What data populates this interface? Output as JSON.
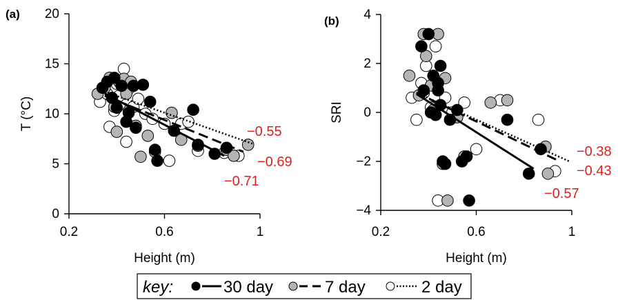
{
  "chart_data": [
    {
      "type": "scatter",
      "panel_label": "(a)",
      "xlabel": "Height (m)",
      "ylabel": "T (°C)",
      "xlim": [
        0.2,
        1.0
      ],
      "ylim": [
        0,
        20
      ],
      "xticks": [
        "0.2",
        "0.6",
        "1"
      ],
      "yticks": [
        "0",
        "5",
        "10",
        "15",
        "20"
      ],
      "grid": false,
      "series": [
        {
          "name": "2 day",
          "fill": "#ffffff",
          "line_style": "dotted",
          "r": "−0.55",
          "fit": [
            [
              0.35,
              12.2
            ],
            [
              0.97,
              7.0
            ]
          ],
          "points": [
            [
              0.33,
              11.2
            ],
            [
              0.36,
              12.0
            ],
            [
              0.37,
              8.7
            ],
            [
              0.39,
              10.3
            ],
            [
              0.4,
              13.0
            ],
            [
              0.41,
              11.8
            ],
            [
              0.43,
              14.5
            ],
            [
              0.44,
              7.2
            ],
            [
              0.45,
              12.5
            ],
            [
              0.47,
              10.7
            ],
            [
              0.49,
              11.5
            ],
            [
              0.52,
              10.0
            ],
            [
              0.55,
              9.5
            ],
            [
              0.6,
              9.0
            ],
            [
              0.62,
              5.3
            ],
            [
              0.67,
              9.0
            ],
            [
              0.7,
              9.2
            ],
            [
              0.74,
              6.3
            ],
            [
              0.85,
              6.1
            ],
            [
              0.91,
              5.8
            ]
          ]
        },
        {
          "name": "7 day",
          "fill": "#b4b4b4",
          "line_style": "dashed",
          "r": "−0.69",
          "fit": [
            [
              0.35,
              11.8
            ],
            [
              0.93,
              6.2
            ]
          ],
          "points": [
            [
              0.32,
              12.0
            ],
            [
              0.35,
              12.6
            ],
            [
              0.37,
              13.6
            ],
            [
              0.39,
              10.7
            ],
            [
              0.4,
              8.2
            ],
            [
              0.41,
              13.2
            ],
            [
              0.42,
              12.9
            ],
            [
              0.43,
              13.5
            ],
            [
              0.44,
              12.0
            ],
            [
              0.45,
              10.3
            ],
            [
              0.46,
              13.2
            ],
            [
              0.48,
              8.8
            ],
            [
              0.5,
              5.7
            ],
            [
              0.53,
              7.8
            ],
            [
              0.56,
              6.2
            ],
            [
              0.63,
              10.1
            ],
            [
              0.67,
              7.4
            ],
            [
              0.74,
              6.8
            ],
            [
              0.86,
              6.4
            ],
            [
              0.89,
              5.8
            ],
            [
              0.95,
              6.9
            ]
          ]
        },
        {
          "name": "30 day",
          "fill": "#000000",
          "line_style": "solid",
          "r": "−0.71",
          "fit": [
            [
              0.35,
              12.0
            ],
            [
              0.85,
              5.8
            ]
          ],
          "points": [
            [
              0.34,
              12.6
            ],
            [
              0.36,
              13.2
            ],
            [
              0.38,
              11.6
            ],
            [
              0.39,
              13.6
            ],
            [
              0.4,
              10.6
            ],
            [
              0.42,
              12.8
            ],
            [
              0.44,
              9.2
            ],
            [
              0.45,
              10.1
            ],
            [
              0.47,
              12.8
            ],
            [
              0.48,
              8.6
            ],
            [
              0.51,
              12.9
            ],
            [
              0.54,
              11.2
            ],
            [
              0.56,
              6.4
            ],
            [
              0.57,
              5.3
            ],
            [
              0.64,
              8.3
            ],
            [
              0.72,
              10.4
            ],
            [
              0.74,
              6.9
            ],
            [
              0.81,
              6.0
            ],
            [
              0.86,
              6.6
            ]
          ]
        }
      ]
    },
    {
      "type": "scatter",
      "panel_label": "(b)",
      "xlabel": "Height (m)",
      "ylabel": "SRI",
      "xlim": [
        0.2,
        1.0
      ],
      "ylim": [
        -4,
        4
      ],
      "xticks": [
        "0.2",
        "0.6",
        "1"
      ],
      "yticks": [
        "−4",
        "−2",
        "0",
        "2",
        "4"
      ],
      "grid": false,
      "series": [
        {
          "name": "2 day",
          "fill": "#ffffff",
          "line_style": "dotted",
          "r": "−0.38",
          "fit": [
            [
              0.35,
              0.8
            ],
            [
              0.99,
              -2.0
            ]
          ],
          "points": [
            [
              0.33,
              0.6
            ],
            [
              0.35,
              -0.3
            ],
            [
              0.37,
              1.2
            ],
            [
              0.38,
              0.8
            ],
            [
              0.39,
              1.9
            ],
            [
              0.4,
              3.2
            ],
            [
              0.41,
              0.2
            ],
            [
              0.43,
              2.7
            ],
            [
              0.44,
              -3.6
            ],
            [
              0.47,
              0.6
            ],
            [
              0.5,
              0.0
            ],
            [
              0.55,
              0.4
            ],
            [
              0.6,
              -1.5
            ],
            [
              0.7,
              0.5
            ],
            [
              0.86,
              -0.3
            ],
            [
              0.93,
              -2.4
            ]
          ]
        },
        {
          "name": "7 day",
          "fill": "#b4b4b4",
          "line_style": "dashed",
          "r": "−0.43",
          "fit": [
            [
              0.35,
              0.8
            ],
            [
              0.95,
              -2.0
            ]
          ],
          "points": [
            [
              0.32,
              1.5
            ],
            [
              0.36,
              0.7
            ],
            [
              0.38,
              3.2
            ],
            [
              0.39,
              2.3
            ],
            [
              0.41,
              1.1
            ],
            [
              0.42,
              0.1
            ],
            [
              0.43,
              -0.1
            ],
            [
              0.44,
              3.2
            ],
            [
              0.46,
              -2.1
            ],
            [
              0.47,
              1.4
            ],
            [
              0.48,
              -3.6
            ],
            [
              0.52,
              -0.2
            ],
            [
              0.55,
              -1.8
            ],
            [
              0.66,
              0.4
            ],
            [
              0.73,
              0.5
            ],
            [
              0.89,
              -1.4
            ],
            [
              0.9,
              -2.5
            ]
          ]
        },
        {
          "name": "30 day",
          "fill": "#000000",
          "line_style": "solid",
          "r": "−0.57",
          "fit": [
            [
              0.35,
              0.75
            ],
            [
              0.84,
              -2.3
            ]
          ],
          "points": [
            [
              0.37,
              2.7
            ],
            [
              0.38,
              0.9
            ],
            [
              0.4,
              3.2
            ],
            [
              0.41,
              0.0
            ],
            [
              0.42,
              1.5
            ],
            [
              0.43,
              -0.1
            ],
            [
              0.44,
              0.9
            ],
            [
              0.45,
              1.9
            ],
            [
              0.44,
              1.2
            ],
            [
              0.45,
              0.3
            ],
            [
              0.46,
              -2.0
            ],
            [
              0.47,
              -2.1
            ],
            [
              0.49,
              -0.3
            ],
            [
              0.52,
              0.1
            ],
            [
              0.54,
              -2.0
            ],
            [
              0.56,
              -1.8
            ],
            [
              0.57,
              -3.6
            ],
            [
              0.73,
              -0.3
            ],
            [
              0.82,
              -2.5
            ],
            [
              0.87,
              -1.5
            ]
          ]
        }
      ]
    }
  ],
  "key": {
    "title": "key:",
    "entries": [
      "30 day",
      "7 day",
      "2 day"
    ]
  }
}
